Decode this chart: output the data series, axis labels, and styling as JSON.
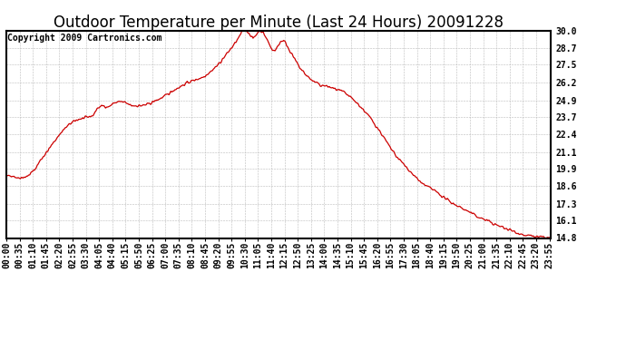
{
  "title": "Outdoor Temperature per Minute (Last 24 Hours) 20091228",
  "copyright_text": "Copyright 2009 Cartronics.com",
  "line_color": "#cc0000",
  "background_color": "#ffffff",
  "grid_color": "#bbbbbb",
  "y_ticks": [
    14.8,
    16.1,
    17.3,
    18.6,
    19.9,
    21.1,
    22.4,
    23.7,
    24.9,
    26.2,
    27.5,
    28.7,
    30.0
  ],
  "y_min": 14.8,
  "y_max": 30.0,
  "x_tick_labels": [
    "00:00",
    "00:35",
    "01:10",
    "01:45",
    "02:20",
    "02:55",
    "03:30",
    "04:05",
    "04:40",
    "05:15",
    "05:50",
    "06:25",
    "07:00",
    "07:35",
    "08:10",
    "08:45",
    "09:20",
    "09:55",
    "10:30",
    "11:05",
    "11:40",
    "12:15",
    "12:50",
    "13:25",
    "14:00",
    "14:35",
    "15:10",
    "15:45",
    "16:20",
    "16:55",
    "17:30",
    "18:05",
    "18:40",
    "19:15",
    "19:50",
    "20:25",
    "21:00",
    "21:35",
    "22:10",
    "22:45",
    "23:20",
    "23:55"
  ],
  "n_minutes": 1440,
  "title_fontsize": 12,
  "axis_fontsize": 7,
  "copyright_fontsize": 7,
  "key_points": [
    [
      0,
      19.3
    ],
    [
      15,
      19.4
    ],
    [
      30,
      19.2
    ],
    [
      55,
      19.3
    ],
    [
      75,
      19.8
    ],
    [
      90,
      20.5
    ],
    [
      110,
      21.2
    ],
    [
      130,
      22.0
    ],
    [
      150,
      22.7
    ],
    [
      170,
      23.2
    ],
    [
      190,
      23.5
    ],
    [
      210,
      23.6
    ],
    [
      230,
      23.8
    ],
    [
      240,
      24.3
    ],
    [
      255,
      24.5
    ],
    [
      270,
      24.4
    ],
    [
      285,
      24.7
    ],
    [
      300,
      24.8
    ],
    [
      315,
      24.7
    ],
    [
      330,
      24.5
    ],
    [
      345,
      24.5
    ],
    [
      360,
      24.5
    ],
    [
      375,
      24.6
    ],
    [
      390,
      24.8
    ],
    [
      405,
      25.0
    ],
    [
      420,
      25.2
    ],
    [
      440,
      25.6
    ],
    [
      460,
      25.9
    ],
    [
      480,
      26.2
    ],
    [
      500,
      26.4
    ],
    [
      520,
      26.6
    ],
    [
      540,
      27.0
    ],
    [
      560,
      27.5
    ],
    [
      580,
      28.2
    ],
    [
      600,
      28.9
    ],
    [
      615,
      29.5
    ],
    [
      625,
      30.0
    ],
    [
      632,
      30.1
    ],
    [
      638,
      29.9
    ],
    [
      645,
      29.7
    ],
    [
      652,
      29.4
    ],
    [
      658,
      29.6
    ],
    [
      665,
      29.9
    ],
    [
      672,
      30.0
    ],
    [
      680,
      29.8
    ],
    [
      690,
      29.3
    ],
    [
      700,
      28.7
    ],
    [
      710,
      28.5
    ],
    [
      718,
      28.9
    ],
    [
      725,
      29.2
    ],
    [
      733,
      29.3
    ],
    [
      742,
      28.9
    ],
    [
      752,
      28.4
    ],
    [
      762,
      27.9
    ],
    [
      775,
      27.3
    ],
    [
      790,
      26.8
    ],
    [
      810,
      26.3
    ],
    [
      830,
      26.0
    ],
    [
      850,
      25.9
    ],
    [
      870,
      25.7
    ],
    [
      890,
      25.5
    ],
    [
      910,
      25.1
    ],
    [
      930,
      24.6
    ],
    [
      950,
      24.0
    ],
    [
      970,
      23.3
    ],
    [
      990,
      22.5
    ],
    [
      1010,
      21.6
    ],
    [
      1030,
      20.8
    ],
    [
      1050,
      20.2
    ],
    [
      1070,
      19.6
    ],
    [
      1090,
      19.0
    ],
    [
      1110,
      18.6
    ],
    [
      1130,
      18.3
    ],
    [
      1150,
      17.9
    ],
    [
      1170,
      17.5
    ],
    [
      1190,
      17.2
    ],
    [
      1210,
      16.9
    ],
    [
      1230,
      16.6
    ],
    [
      1250,
      16.3
    ],
    [
      1270,
      16.1
    ],
    [
      1290,
      15.8
    ],
    [
      1310,
      15.6
    ],
    [
      1330,
      15.4
    ],
    [
      1350,
      15.2
    ],
    [
      1370,
      15.0
    ],
    [
      1390,
      14.92
    ],
    [
      1410,
      14.87
    ],
    [
      1430,
      14.82
    ],
    [
      1439,
      14.8
    ]
  ]
}
